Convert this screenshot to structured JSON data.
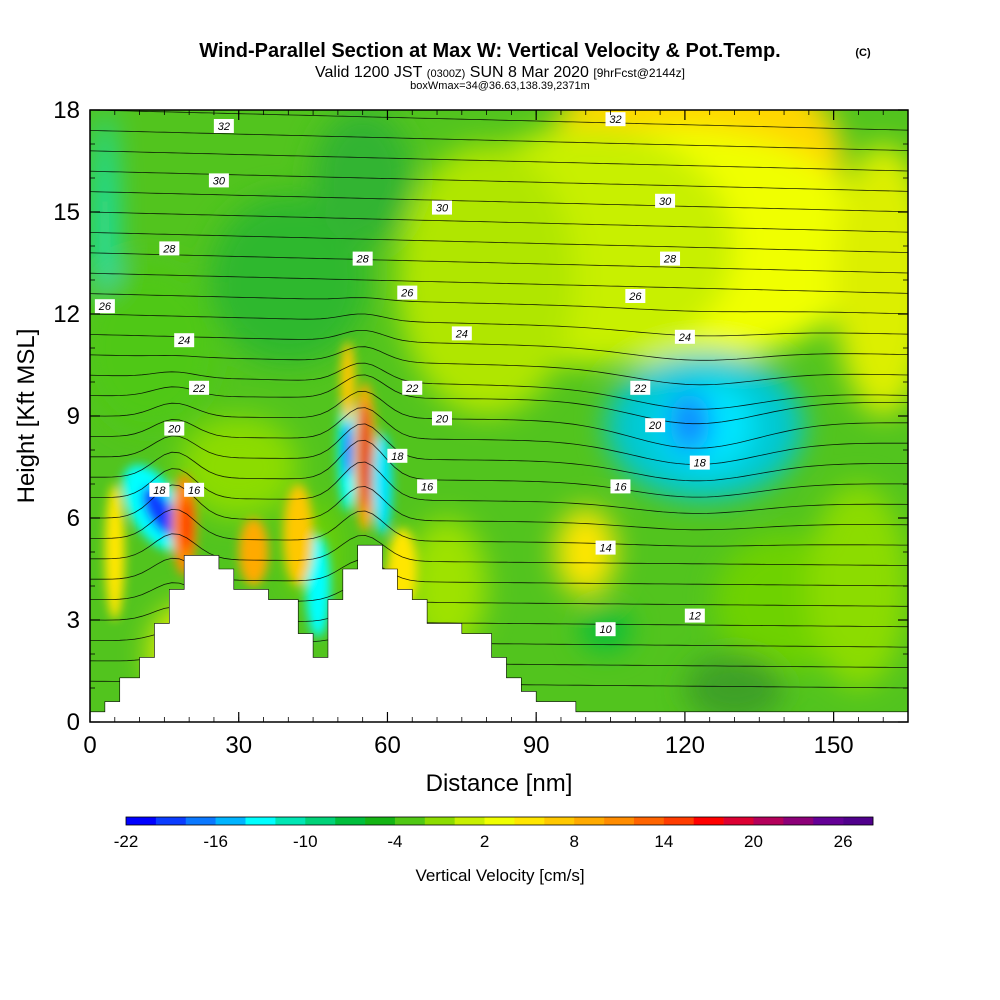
{
  "header": {
    "title": "Wind-Parallel Section at Max W: Vertical Velocity & Pot.Temp.",
    "copyright": "(C)",
    "valid_prefix": "Valid 1200 JST",
    "valid_utc": "(0300Z)",
    "valid_date": "SUN 8 Mar 2020",
    "forecast": "[9hrFcst@2144z]",
    "box_info": "boxWmax=34@36.63,138.39,2371m"
  },
  "chart_data": {
    "type": "heatmap",
    "title": "Wind-Parallel Section at Max W: Vertical Velocity & Pot.Temp.",
    "xlabel": "Distance [nm]",
    "ylabel": "Height [Kft MSL]",
    "xlim": [
      0,
      165
    ],
    "ylim": [
      0,
      18
    ],
    "xticks": [
      0,
      30,
      60,
      90,
      120,
      150
    ],
    "yticks": [
      0,
      3,
      6,
      9,
      12,
      15,
      18
    ],
    "colorbar": {
      "label": "Vertical Velocity [cm/s]",
      "min": -22,
      "max": 28,
      "ticks": [
        -22,
        -16,
        -10,
        -4,
        2,
        8,
        14,
        20,
        26
      ],
      "colors": [
        "#0000ff",
        "#0a3cff",
        "#0a78ff",
        "#00b4ff",
        "#00ffff",
        "#00e6b4",
        "#00d278",
        "#00be3c",
        "#14b414",
        "#50c814",
        "#8cdc00",
        "#c8f000",
        "#f0ff00",
        "#ffe600",
        "#ffc800",
        "#ffaa00",
        "#ff8c00",
        "#ff6400",
        "#ff3c00",
        "#ff0000",
        "#dc0032",
        "#b4005a",
        "#8c0078",
        "#640096",
        "#50008c"
      ]
    },
    "theta_contour_labels": [
      {
        "x": 27,
        "y": 17.5,
        "label": "32"
      },
      {
        "x": 106,
        "y": 17.7,
        "label": "32"
      },
      {
        "x": 26,
        "y": 15.9,
        "label": "30"
      },
      {
        "x": 71,
        "y": 15.1,
        "label": "30"
      },
      {
        "x": 116,
        "y": 15.3,
        "label": "30"
      },
      {
        "x": 16,
        "y": 13.9,
        "label": "28"
      },
      {
        "x": 55,
        "y": 13.6,
        "label": "28"
      },
      {
        "x": 117,
        "y": 13.6,
        "label": "28"
      },
      {
        "x": 3,
        "y": 12.2,
        "label": "26"
      },
      {
        "x": 64,
        "y": 12.6,
        "label": "26"
      },
      {
        "x": 110,
        "y": 12.5,
        "label": "26"
      },
      {
        "x": 19,
        "y": 11.2,
        "label": "24"
      },
      {
        "x": 75,
        "y": 11.4,
        "label": "24"
      },
      {
        "x": 120,
        "y": 11.3,
        "label": "24"
      },
      {
        "x": 22,
        "y": 9.8,
        "label": "22"
      },
      {
        "x": 65,
        "y": 9.8,
        "label": "22"
      },
      {
        "x": 111,
        "y": 9.8,
        "label": "22"
      },
      {
        "x": 17,
        "y": 8.6,
        "label": "20"
      },
      {
        "x": 71,
        "y": 8.9,
        "label": "20"
      },
      {
        "x": 114,
        "y": 8.7,
        "label": "20"
      },
      {
        "x": 14,
        "y": 6.8,
        "label": "18"
      },
      {
        "x": 62,
        "y": 7.8,
        "label": "18"
      },
      {
        "x": 123,
        "y": 7.6,
        "label": "18"
      },
      {
        "x": 21,
        "y": 6.8,
        "label": "16"
      },
      {
        "x": 68,
        "y": 6.9,
        "label": "16"
      },
      {
        "x": 107,
        "y": 6.9,
        "label": "16"
      },
      {
        "x": 104,
        "y": 5.1,
        "label": "14"
      },
      {
        "x": 122,
        "y": 3.1,
        "label": "12"
      },
      {
        "x": 104,
        "y": 2.7,
        "label": "10"
      }
    ],
    "terrain": [
      [
        0,
        0.3
      ],
      [
        3,
        0.3
      ],
      [
        3,
        0.6
      ],
      [
        6,
        0.6
      ],
      [
        6,
        1.3
      ],
      [
        10,
        1.3
      ],
      [
        10,
        1.9
      ],
      [
        13,
        1.9
      ],
      [
        13,
        2.9
      ],
      [
        16,
        2.9
      ],
      [
        16,
        3.9
      ],
      [
        19,
        3.9
      ],
      [
        19,
        4.9
      ],
      [
        26,
        4.9
      ],
      [
        26,
        4.5
      ],
      [
        29,
        4.5
      ],
      [
        29,
        3.9
      ],
      [
        36,
        3.9
      ],
      [
        36,
        3.6
      ],
      [
        42,
        3.6
      ],
      [
        42,
        2.6
      ],
      [
        45,
        2.6
      ],
      [
        45,
        1.9
      ],
      [
        48,
        1.9
      ],
      [
        48,
        3.6
      ],
      [
        51,
        3.6
      ],
      [
        51,
        4.5
      ],
      [
        54,
        4.5
      ],
      [
        54,
        5.2
      ],
      [
        59,
        5.2
      ],
      [
        59,
        4.5
      ],
      [
        62,
        4.5
      ],
      [
        62,
        3.9
      ],
      [
        65,
        3.9
      ],
      [
        65,
        3.6
      ],
      [
        68,
        3.6
      ],
      [
        68,
        2.9
      ],
      [
        75,
        2.9
      ],
      [
        75,
        2.6
      ],
      [
        81,
        2.6
      ],
      [
        81,
        1.9
      ],
      [
        84,
        1.9
      ],
      [
        84,
        1.3
      ],
      [
        87,
        1.3
      ],
      [
        87,
        0.9
      ],
      [
        90,
        0.9
      ],
      [
        90,
        0.6
      ],
      [
        98,
        0.6
      ],
      [
        98,
        0.3
      ],
      [
        165,
        0.3
      ]
    ]
  }
}
